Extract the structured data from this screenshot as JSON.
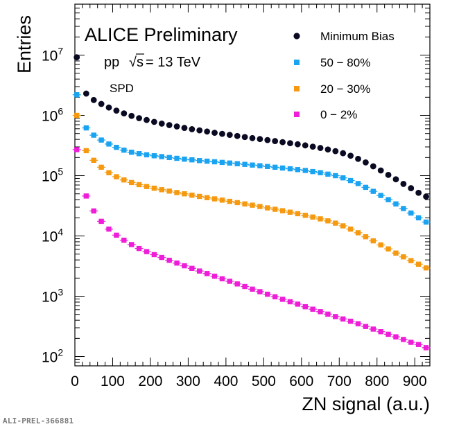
{
  "reference": "ALI-PREL-366881",
  "chart_data": {
    "type": "scatter",
    "title": "ALICE Preliminary",
    "annotations": [
      "pp",
      "√s",
      "= 13 TeV",
      "SPD"
    ],
    "xlabel": "ZN signal (a.u.)",
    "ylabel": "Entries",
    "xlim": [
      0,
      940
    ],
    "ylim": [
      70,
      70000000
    ],
    "yscale": "log",
    "grid": false,
    "legend_position": "top-right",
    "xticks": [
      "0",
      "100",
      "200",
      "300",
      "400",
      "500",
      "600",
      "700",
      "800",
      "900"
    ],
    "xtick_values": [
      0,
      100,
      200,
      300,
      400,
      500,
      600,
      700,
      800,
      900
    ],
    "ytick_exponents": [
      2,
      3,
      4,
      5,
      6,
      7
    ],
    "ytick_base": "10",
    "x": [
      5,
      30,
      50,
      70,
      90,
      110,
      130,
      150,
      170,
      190,
      210,
      230,
      250,
      270,
      290,
      310,
      330,
      350,
      370,
      390,
      410,
      430,
      450,
      470,
      490,
      510,
      530,
      550,
      570,
      590,
      610,
      630,
      650,
      670,
      690,
      710,
      730,
      750,
      770,
      790,
      810,
      830,
      850,
      870,
      890,
      910,
      930
    ],
    "series": [
      {
        "name": "Minimum Bias",
        "marker": "circle",
        "color": "#0a0a23",
        "values": [
          9200000,
          2300000,
          1800000,
          1550000,
          1350000,
          1200000,
          1080000,
          980000,
          900000,
          840000,
          780000,
          730000,
          690000,
          655000,
          620000,
          590000,
          565000,
          540000,
          515000,
          495000,
          475000,
          455000,
          438000,
          420000,
          405000,
          390000,
          375000,
          360000,
          346000,
          332000,
          318000,
          303000,
          288000,
          272000,
          255000,
          236000,
          214000,
          190000,
          166000,
          143000,
          122000,
          103000,
          87000,
          73000,
          62000,
          52000,
          45000
        ]
      },
      {
        "name": "50 − 80%",
        "marker": "square",
        "color": "#1aa3f0",
        "values": [
          2200000,
          620000,
          470000,
          390000,
          335000,
          295000,
          265000,
          245000,
          232000,
          222000,
          214000,
          207000,
          200000,
          194000,
          188000,
          183000,
          178000,
          174000,
          170000,
          166000,
          162000,
          158000,
          154000,
          150000,
          146000,
          142000,
          138000,
          134000,
          130000,
          126000,
          122000,
          117000,
          112000,
          106000,
          100000,
          92000,
          83000,
          74000,
          64000,
          55000,
          47000,
          40000,
          34000,
          28500,
          24000,
          20000,
          17000
        ]
      },
      {
        "name": "20 − 30%",
        "marker": "square",
        "color": "#f59a10",
        "values": [
          1000000,
          260000,
          180000,
          138000,
          112000,
          96000,
          85000,
          77000,
          71000,
          66000,
          62000,
          58500,
          55500,
          52500,
          50000,
          47500,
          45300,
          43200,
          41200,
          39300,
          37500,
          35700,
          34000,
          32400,
          30800,
          29200,
          27700,
          26200,
          24800,
          23400,
          22000,
          20600,
          19200,
          17800,
          16300,
          14700,
          13000,
          11300,
          9700,
          8300,
          7100,
          6100,
          5200,
          4500,
          3900,
          3400,
          2950
        ]
      },
      {
        "name": "0 − 2%",
        "marker": "square",
        "color": "#ee1ed8",
        "values": [
          270000,
          46000,
          26000,
          17500,
          13000,
          10300,
          8500,
          7200,
          6200,
          5500,
          4900,
          4400,
          3950,
          3550,
          3200,
          2900,
          2620,
          2380,
          2150,
          1950,
          1770,
          1600,
          1450,
          1310,
          1190,
          1080,
          980,
          890,
          810,
          740,
          670,
          610,
          555,
          505,
          460,
          420,
          385,
          350,
          315,
          285,
          258,
          234,
          212,
          192,
          172,
          158,
          140
        ]
      }
    ]
  }
}
